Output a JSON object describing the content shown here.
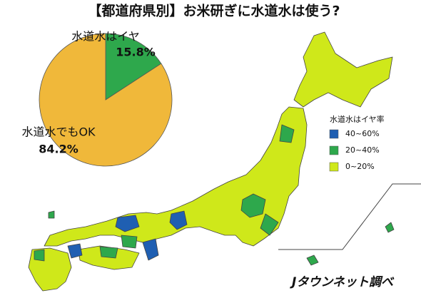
{
  "title": "【都道府県別】お米研ぎに水道水は使う?",
  "chart_data": {
    "type": "pie",
    "categories": [
      "水道水はイヤ",
      "水道水でもOK"
    ],
    "values": [
      15.8,
      84.2
    ],
    "value_labels": [
      "15.8%",
      "84.2%"
    ],
    "colors": [
      "#2ea84c",
      "#f0b83a"
    ]
  },
  "legend": {
    "title": "水道水はイヤ率",
    "items": [
      {
        "label": "40~60%",
        "color": "#1f5fb2"
      },
      {
        "label": "20~40%",
        "color": "#2ea84c"
      },
      {
        "label": "0~20%",
        "color": "#cfe81a"
      }
    ]
  },
  "source": "Jタウンネット調べ"
}
